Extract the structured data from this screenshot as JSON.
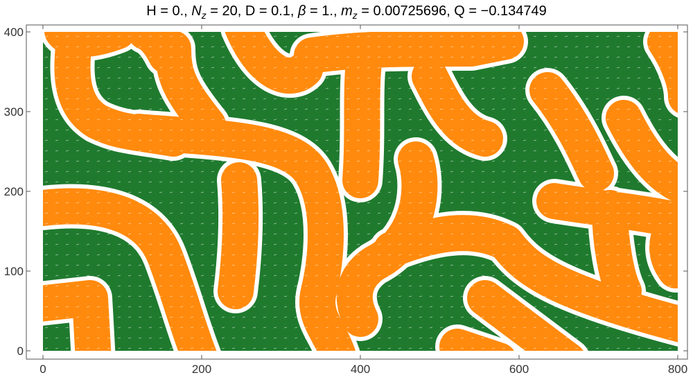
{
  "chart_data": {
    "type": "vector-density",
    "title_parts": [
      "H = 0.,  ",
      "N",
      "z",
      " = 20,  D = 0.1,  ",
      "β",
      " = 1.,  ",
      "m",
      "z",
      " = 0.00725696,  Q = −0.134749"
    ],
    "xlim": [
      0,
      800
    ],
    "ylim": [
      0,
      400
    ],
    "xticks": [
      0,
      200,
      400,
      600,
      800
    ],
    "yticks": [
      0,
      100,
      200,
      300,
      400
    ],
    "colors": {
      "negative": "#1f7a2e",
      "positive": "#ff8a0d",
      "arrows": "#ffffff"
    }
  }
}
